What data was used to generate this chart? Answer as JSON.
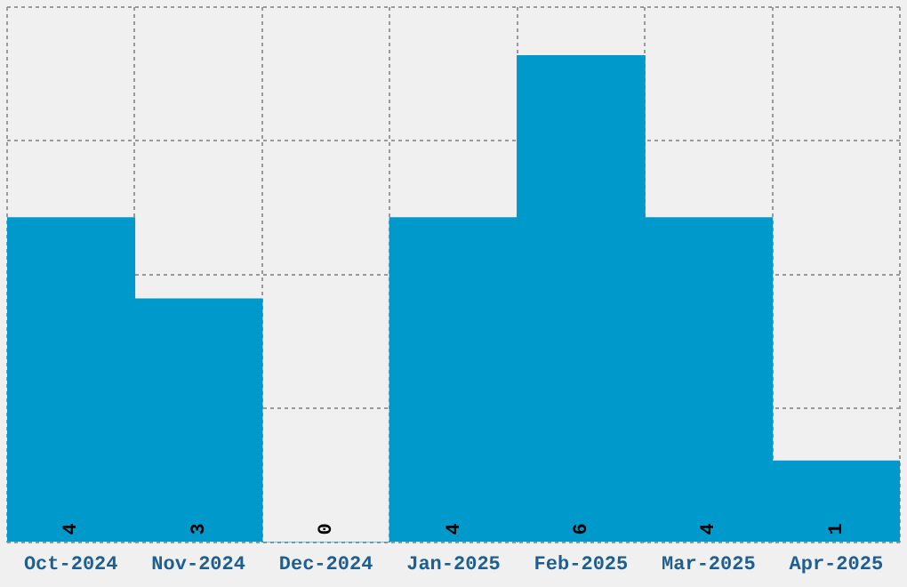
{
  "chart_data": {
    "type": "bar",
    "categories": [
      "Oct-2024",
      "Nov-2024",
      "Dec-2024",
      "Jan-2025",
      "Feb-2025",
      "Mar-2025",
      "Apr-2025"
    ],
    "values": [
      4,
      3,
      0,
      4,
      6,
      4,
      1
    ],
    "color": "#0099cc",
    "data_labels": true,
    "ylim": [
      0,
      6.6
    ],
    "yticks": [
      {
        "value": 0,
        "label": null
      },
      {
        "value": 1.65,
        "label": null
      },
      {
        "value": 3.3,
        "label": null
      },
      {
        "value": 4.95,
        "label": null
      },
      {
        "value": 6.6,
        "label": null
      }
    ],
    "grid": true,
    "tick_labels": "x",
    "legend": false
  }
}
